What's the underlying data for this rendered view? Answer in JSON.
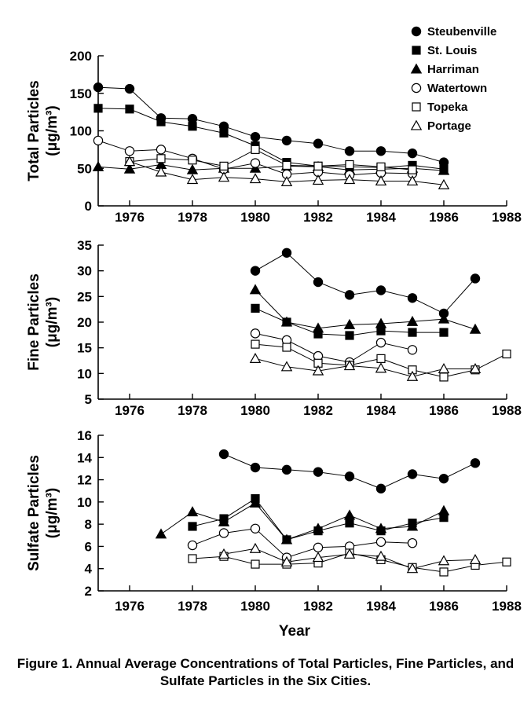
{
  "caption": "Figure 1. Annual Average Concentrations of Total Particles, Fine Particles, and Sulfate Particles in the Six Cities.",
  "series_styles": [
    {
      "name": "Steubenville",
      "marker": "circle",
      "fill": "#000000"
    },
    {
      "name": "St. Louis",
      "marker": "square",
      "fill": "#000000"
    },
    {
      "name": "Harriman",
      "marker": "triangle",
      "fill": "#000000"
    },
    {
      "name": "Watertown",
      "marker": "circle",
      "fill": "#ffffff"
    },
    {
      "name": "Topeka",
      "marker": "square",
      "fill": "#ffffff"
    },
    {
      "name": "Portage",
      "marker": "triangle",
      "fill": "#ffffff"
    }
  ],
  "chart_data": [
    {
      "type": "line",
      "ylabel_line1": "Total Particles",
      "ylabel_line2": "(μg/m³)",
      "xlabel": "",
      "xlim": [
        1975,
        1988
      ],
      "ylim": [
        0,
        200
      ],
      "xticks": [
        1976,
        1978,
        1980,
        1982,
        1984,
        1986,
        1988
      ],
      "yticks": [
        0,
        50,
        100,
        150,
        200
      ],
      "legend": "top-right",
      "series": [
        {
          "name": "Steubenville",
          "points": [
            [
              1975,
              158
            ],
            [
              1976,
              156
            ],
            [
              1977,
              117
            ],
            [
              1978,
              116
            ],
            [
              1979,
              106
            ],
            [
              1980,
              92
            ],
            [
              1981,
              87
            ],
            [
              1982,
              83
            ],
            [
              1983,
              73
            ],
            [
              1984,
              73
            ],
            [
              1985,
              70
            ],
            [
              1986,
              58
            ]
          ]
        },
        {
          "name": "St. Louis",
          "points": [
            [
              1975,
              130
            ],
            [
              1976,
              129
            ],
            [
              1977,
              112
            ],
            [
              1978,
              106
            ],
            [
              1979,
              97
            ],
            [
              1980,
              80
            ],
            [
              1981,
              58
            ],
            [
              1982,
              53
            ],
            [
              1983,
              52
            ],
            [
              1984,
              51
            ],
            [
              1985,
              54
            ],
            [
              1986,
              49
            ]
          ]
        },
        {
          "name": "Harriman",
          "points": [
            [
              1975,
              52
            ],
            [
              1976,
              49
            ],
            [
              1977,
              55
            ],
            [
              1978,
              48
            ],
            [
              1979,
              50
            ],
            [
              1980,
              50
            ],
            [
              1981,
              53
            ],
            [
              1982,
              52
            ],
            [
              1983,
              48
            ],
            [
              1984,
              49
            ],
            [
              1985,
              50
            ],
            [
              1986,
              47
            ]
          ]
        },
        {
          "name": "Watertown",
          "points": [
            [
              1975,
              87
            ],
            [
              1976,
              73
            ],
            [
              1977,
              75
            ],
            [
              1978,
              63
            ],
            [
              1979,
              49
            ],
            [
              1980,
              57
            ],
            [
              1981,
              42
            ],
            [
              1982,
              45
            ],
            [
              1983,
              41
            ],
            [
              1984,
              44
            ],
            [
              1985,
              43
            ]
          ]
        },
        {
          "name": "Topeka",
          "points": [
            [
              1976,
              59
            ],
            [
              1977,
              63
            ],
            [
              1978,
              61
            ],
            [
              1979,
              53
            ],
            [
              1980,
              75
            ],
            [
              1981,
              54
            ],
            [
              1982,
              53
            ],
            [
              1983,
              55
            ],
            [
              1984,
              52
            ],
            [
              1985,
              48
            ]
          ]
        },
        {
          "name": "Portage",
          "points": [
            [
              1976,
              59
            ],
            [
              1977,
              45
            ],
            [
              1978,
              35
            ],
            [
              1979,
              38
            ],
            [
              1980,
              36
            ],
            [
              1981,
              32
            ],
            [
              1982,
              34
            ],
            [
              1983,
              35
            ],
            [
              1984,
              33
            ],
            [
              1985,
              33
            ],
            [
              1986,
              28
            ]
          ]
        }
      ]
    },
    {
      "type": "line",
      "ylabel_line1": "Fine Particles",
      "ylabel_line2": "(μg/m³)",
      "xlabel": "",
      "xlim": [
        1975,
        1988
      ],
      "ylim": [
        5,
        35
      ],
      "xticks": [
        1976,
        1978,
        1980,
        1982,
        1984,
        1986,
        1988
      ],
      "yticks": [
        5,
        10,
        15,
        20,
        25,
        30,
        35
      ],
      "series": [
        {
          "name": "Steubenville",
          "points": [
            [
              1980,
              30
            ],
            [
              1981,
              33.5
            ],
            [
              1982,
              27.8
            ],
            [
              1983,
              25.3
            ],
            [
              1984,
              26.2
            ],
            [
              1985,
              24.7
            ],
            [
              1986,
              21.7
            ],
            [
              1987,
              28.5
            ]
          ]
        },
        {
          "name": "St. Louis",
          "points": [
            [
              1980,
              22.7
            ],
            [
              1981,
              20
            ],
            [
              1982,
              17.7
            ],
            [
              1983,
              17.4
            ],
            [
              1984,
              18.3
            ],
            [
              1985,
              18
            ],
            [
              1986,
              18
            ]
          ]
        },
        {
          "name": "Harriman",
          "points": [
            [
              1980,
              26.3
            ],
            [
              1981,
              20
            ],
            [
              1982,
              18.8
            ],
            [
              1983,
              19.5
            ],
            [
              1984,
              19.7
            ],
            [
              1985,
              20.1
            ],
            [
              1986,
              20.6
            ],
            [
              1987,
              18.6
            ]
          ]
        },
        {
          "name": "Watertown",
          "points": [
            [
              1980,
              17.8
            ],
            [
              1981,
              16.5
            ],
            [
              1982,
              13.4
            ],
            [
              1983,
              12.2
            ],
            [
              1984,
              16
            ],
            [
              1985,
              14.6
            ]
          ]
        },
        {
          "name": "Topeka",
          "points": [
            [
              1980,
              15.7
            ],
            [
              1981,
              15.1
            ],
            [
              1982,
              12
            ],
            [
              1983,
              11.6
            ],
            [
              1984,
              12.9
            ],
            [
              1985,
              10.7
            ],
            [
              1986,
              9.3
            ],
            [
              1987,
              10.7
            ],
            [
              1988,
              13.8
            ]
          ]
        },
        {
          "name": "Portage",
          "points": [
            [
              1980,
              12.9
            ],
            [
              1981,
              11.3
            ],
            [
              1982,
              10.5
            ],
            [
              1983,
              11.5
            ],
            [
              1984,
              11
            ],
            [
              1985,
              9.4
            ],
            [
              1986,
              10.9
            ],
            [
              1987,
              10.9
            ]
          ]
        }
      ]
    },
    {
      "type": "line",
      "ylabel_line1": "Sulfate Particles",
      "ylabel_line2": "(μg/m³)",
      "xlabel": "Year",
      "xlim": [
        1975,
        1988
      ],
      "ylim": [
        2,
        16
      ],
      "xticks": [
        1976,
        1978,
        1980,
        1982,
        1984,
        1986,
        1988
      ],
      "yticks": [
        2,
        4,
        6,
        8,
        10,
        12,
        14,
        16
      ],
      "series": [
        {
          "name": "Steubenville",
          "points": [
            [
              1979,
              14.3
            ],
            [
              1980,
              13.1
            ],
            [
              1981,
              12.9
            ],
            [
              1982,
              12.7
            ],
            [
              1983,
              12.3
            ],
            [
              1984,
              11.2
            ],
            [
              1985,
              12.5
            ],
            [
              1986,
              12.1
            ],
            [
              1987,
              13.5
            ]
          ]
        },
        {
          "name": "St. Louis",
          "points": [
            [
              1978,
              7.8
            ],
            [
              1979,
              8.5
            ],
            [
              1980,
              10.3
            ],
            [
              1981,
              6.6
            ],
            [
              1982,
              7.4
            ],
            [
              1983,
              8.1
            ],
            [
              1984,
              7.4
            ],
            [
              1985,
              8.1
            ],
            [
              1986,
              8.6
            ]
          ]
        },
        {
          "name": "Harriman",
          "points": [
            [
              1977,
              7.1
            ],
            [
              1978,
              9.1
            ],
            [
              1979,
              8.2
            ],
            [
              1980,
              9.9
            ],
            [
              1981,
              6.6
            ],
            [
              1982,
              7.6
            ],
            [
              1983,
              8.8
            ],
            [
              1984,
              7.6
            ],
            [
              1985,
              7.8
            ],
            [
              1986,
              9.2
            ]
          ]
        },
        {
          "name": "Watertown",
          "points": [
            [
              1978,
              6.1
            ],
            [
              1979,
              7.2
            ],
            [
              1980,
              7.6
            ],
            [
              1981,
              5
            ],
            [
              1982,
              5.9
            ],
            [
              1983,
              6
            ],
            [
              1984,
              6.4
            ],
            [
              1985,
              6.3
            ]
          ]
        },
        {
          "name": "Topeka",
          "points": [
            [
              1978,
              4.9
            ],
            [
              1979,
              5.1
            ],
            [
              1980,
              4.4
            ],
            [
              1981,
              4.4
            ],
            [
              1982,
              4.5
            ],
            [
              1983,
              5.4
            ],
            [
              1984,
              4.8
            ],
            [
              1985,
              4.1
            ],
            [
              1986,
              3.7
            ],
            [
              1987,
              4.3
            ],
            [
              1988,
              4.6
            ]
          ]
        },
        {
          "name": "Portage",
          "points": [
            [
              1979,
              5.3
            ],
            [
              1980,
              5.8
            ],
            [
              1981,
              4.6
            ],
            [
              1982,
              5
            ],
            [
              1983,
              5.3
            ],
            [
              1984,
              5.1
            ],
            [
              1985,
              4
            ],
            [
              1986,
              4.7
            ],
            [
              1987,
              4.8
            ]
          ]
        }
      ]
    }
  ]
}
